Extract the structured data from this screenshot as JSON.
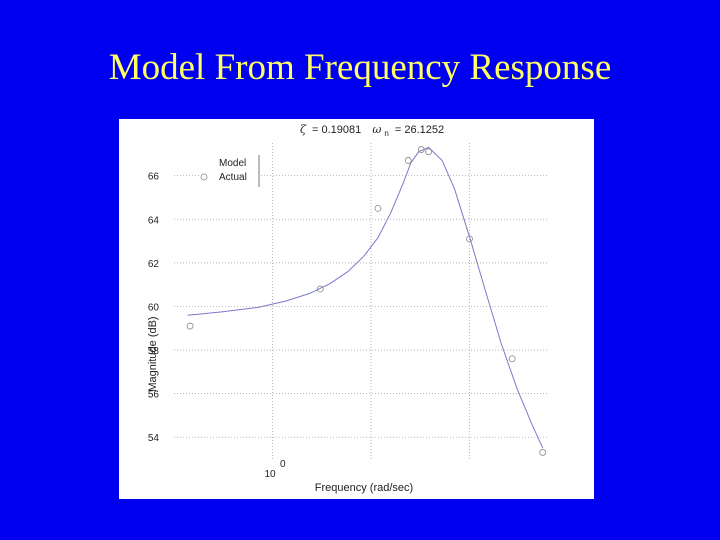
{
  "slide": {
    "title": "Model From Frequency Response"
  },
  "chart_data": {
    "type": "line",
    "title": "ζ = 0.19081  ω_n = 26.1252",
    "title_parts": {
      "zeta_symbol": "ζ",
      "zeta_value": "= 0.19081",
      "omega_symbol": "ω",
      "omega_sub": "n",
      "omega_value": "= 26.1252"
    },
    "xlabel": "Frequency (rad/sec)",
    "ylabel": "Magnitude (dB)",
    "x_scale": "log",
    "xlim": [
      5,
      70
    ],
    "ylim": [
      53,
      67.5
    ],
    "x_tick_label": "10",
    "x_tick_exponent": "0",
    "x_gridlines": [
      10,
      20,
      40
    ],
    "yticks": [
      54,
      56,
      58,
      60,
      62,
      64,
      66
    ],
    "ytick_labels": [
      "54",
      "56",
      "58",
      "60",
      "62",
      "64",
      "66"
    ],
    "grid": "dotted",
    "legend_position": "top-left",
    "series": [
      {
        "name": "Model",
        "style": "line",
        "color": "#7a7ac8",
        "x": [
          5.5,
          7,
          9,
          11,
          13,
          15,
          17,
          19,
          21,
          23,
          25,
          26.5,
          28,
          30,
          33,
          36,
          40,
          45,
          50,
          56,
          62,
          67
        ],
        "y": [
          59.6,
          59.75,
          59.95,
          60.25,
          60.6,
          61.05,
          61.6,
          62.3,
          63.15,
          64.3,
          65.6,
          66.6,
          67.1,
          67.3,
          66.7,
          65.4,
          63.2,
          60.6,
          58.3,
          56.2,
          54.6,
          53.5
        ]
      },
      {
        "name": "Actual",
        "style": "markers",
        "marker": "circle",
        "color": "#888888",
        "x": [
          5.6,
          14,
          21,
          26,
          28.5,
          30,
          40,
          54,
          67
        ],
        "y": [
          59.1,
          60.8,
          64.5,
          66.7,
          67.2,
          67.1,
          63.1,
          57.6,
          53.3
        ]
      }
    ]
  }
}
